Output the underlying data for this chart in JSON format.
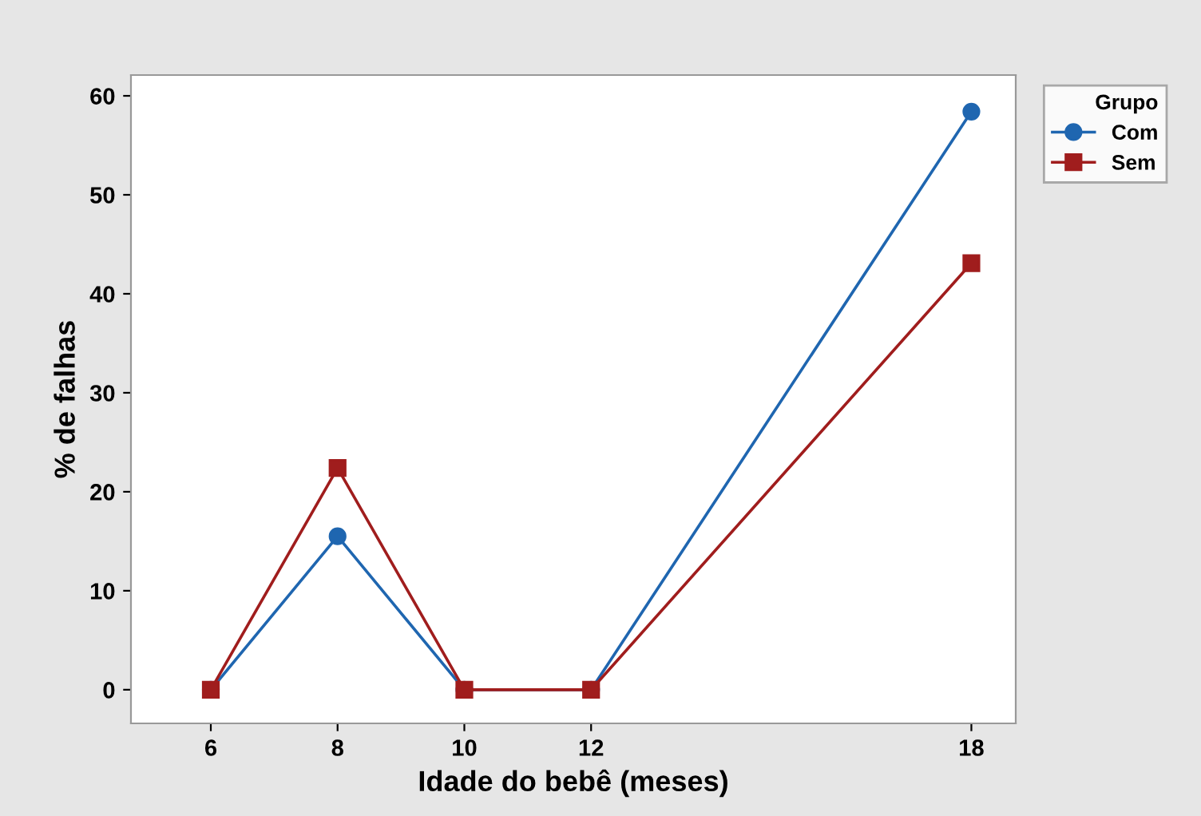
{
  "chart_data": {
    "type": "line",
    "xlabel": "Idade do bebê (meses)",
    "ylabel": "% de falhas",
    "legend_title": "Grupo",
    "x": [
      6,
      8,
      10,
      12,
      18
    ],
    "series": [
      {
        "name": "Com",
        "color": "#1f66b0",
        "marker": "circle",
        "values": [
          0,
          15.5,
          0,
          0,
          58.4
        ]
      },
      {
        "name": "Sem",
        "color": "#a01d1d",
        "marker": "square",
        "values": [
          0,
          22.4,
          0,
          0,
          43.1
        ]
      }
    ],
    "xlim": [
      4.74,
      18.7
    ],
    "xticks": [
      6,
      8,
      10,
      12,
      18
    ],
    "ylim": [
      -3.4,
      62.1
    ],
    "yticks": [
      0,
      10,
      20,
      30,
      40,
      50,
      60
    ],
    "grid": false,
    "legend": "top right",
    "line_style": "solid"
  }
}
